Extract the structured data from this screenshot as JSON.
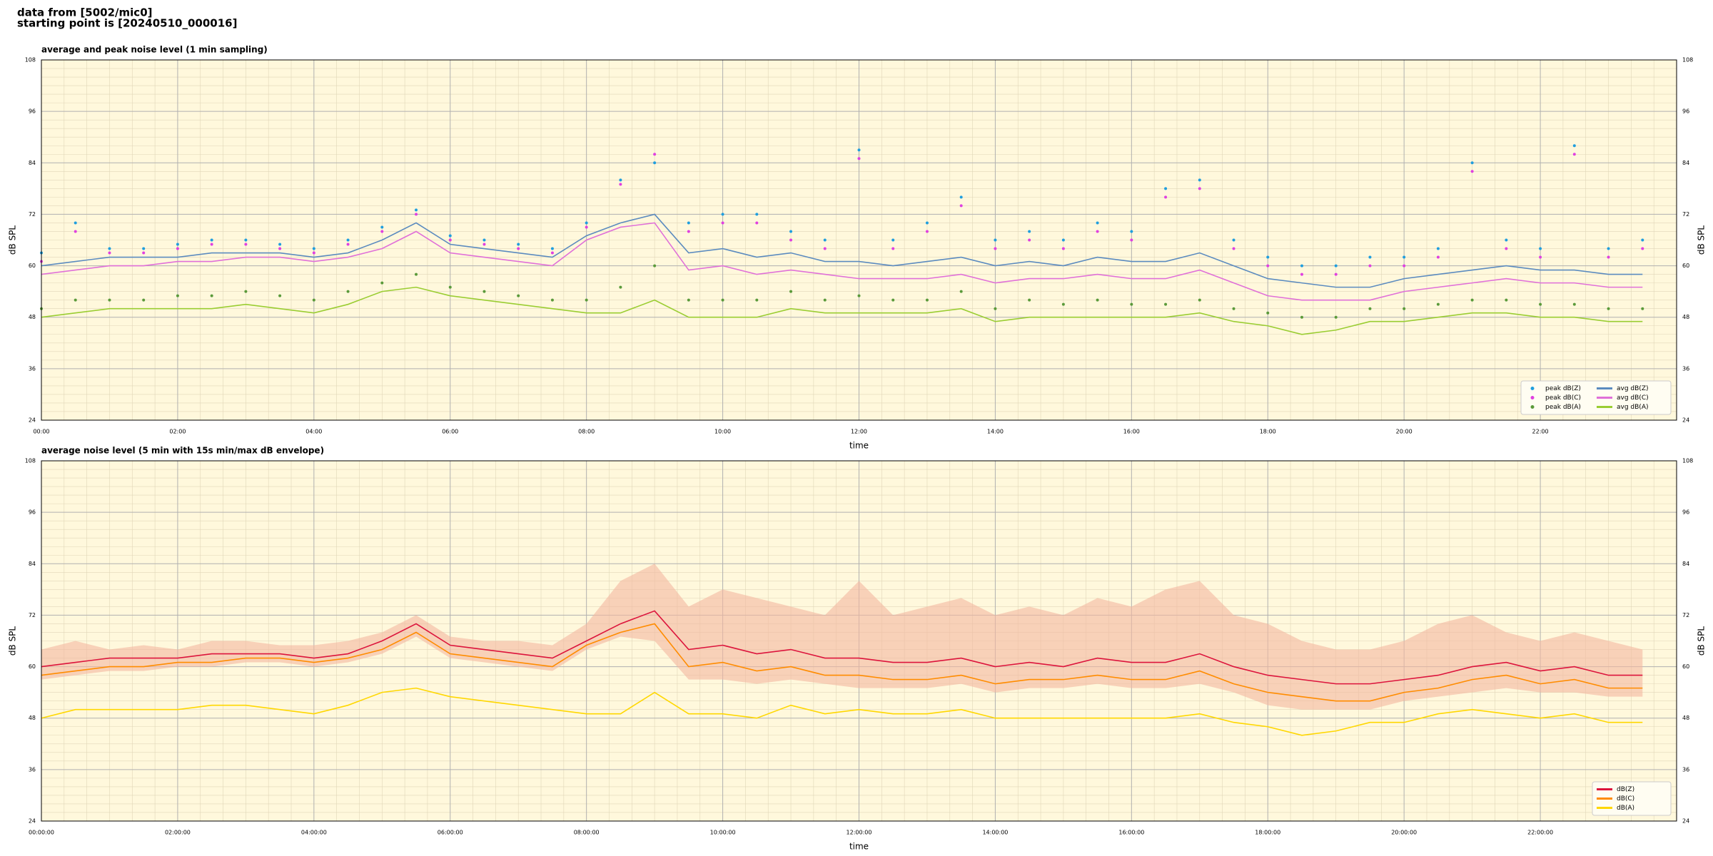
{
  "header": {
    "lines": [
      "data from [5002/mic0]",
      "starting point is [20240510_000016]"
    ]
  },
  "chart_data": [
    {
      "type": "line",
      "title": "average and peak noise level (1 min sampling)",
      "xlabel": "time",
      "ylabel": "dB SPL",
      "xlim": [
        0,
        24
      ],
      "ylim": [
        24,
        108
      ],
      "xticks": [
        {
          "value": 0,
          "label": "00:00"
        },
        {
          "value": 2,
          "label": "02:00"
        },
        {
          "value": 4,
          "label": "04:00"
        },
        {
          "value": 6,
          "label": "06:00"
        },
        {
          "value": 8,
          "label": "08:00"
        },
        {
          "value": 10,
          "label": "10:00"
        },
        {
          "value": 12,
          "label": "12:00"
        },
        {
          "value": 14,
          "label": "14:00"
        },
        {
          "value": 16,
          "label": "16:00"
        },
        {
          "value": 18,
          "label": "18:00"
        },
        {
          "value": 20,
          "label": "20:00"
        },
        {
          "value": 22,
          "label": "22:00"
        }
      ],
      "yticks": [
        24,
        36,
        48,
        60,
        72,
        84,
        96,
        108
      ],
      "grid": true,
      "minor_grid": true,
      "background": "#fff8dc",
      "legend": "lower right",
      "legend_columns": 2,
      "x": [
        0,
        0.5,
        1,
        1.5,
        2,
        2.5,
        3,
        3.5,
        4,
        4.5,
        5,
        5.5,
        6,
        6.5,
        7,
        7.5,
        8,
        8.5,
        9,
        9.5,
        10,
        10.5,
        11,
        11.5,
        12,
        12.5,
        13,
        13.5,
        14,
        14.5,
        15,
        15.5,
        16,
        16.5,
        17,
        17.5,
        18,
        18.5,
        19,
        19.5,
        20,
        20.5,
        21,
        21.5,
        22,
        22.5,
        23,
        23.5
      ],
      "series": [
        {
          "name": "peak dB(Z)",
          "style": "dots",
          "color": "#1f9ede",
          "values": [
            63,
            70,
            64,
            64,
            65,
            66,
            66,
            65,
            64,
            66,
            69,
            73,
            67,
            66,
            65,
            64,
            70,
            80,
            84,
            70,
            72,
            72,
            68,
            66,
            87,
            66,
            70,
            76,
            66,
            68,
            66,
            70,
            68,
            78,
            80,
            66,
            62,
            60,
            60,
            62,
            62,
            64,
            84,
            66,
            64,
            88,
            64,
            66
          ]
        },
        {
          "name": "peak dB(C)",
          "style": "dots",
          "color": "#e040e0",
          "values": [
            61,
            68,
            63,
            63,
            64,
            65,
            65,
            64,
            63,
            65,
            68,
            72,
            66,
            65,
            64,
            63,
            69,
            79,
            86,
            68,
            70,
            70,
            66,
            64,
            85,
            64,
            68,
            74,
            64,
            66,
            64,
            68,
            66,
            76,
            78,
            64,
            60,
            58,
            58,
            60,
            60,
            62,
            82,
            64,
            62,
            86,
            62,
            64
          ]
        },
        {
          "name": "peak dB(A)",
          "style": "dots",
          "color": "#5a9a3a",
          "values": [
            50,
            52,
            52,
            52,
            53,
            53,
            54,
            53,
            52,
            54,
            56,
            58,
            55,
            54,
            53,
            52,
            52,
            55,
            60,
            52,
            52,
            52,
            54,
            52,
            53,
            52,
            52,
            54,
            50,
            52,
            51,
            52,
            51,
            51,
            52,
            50,
            49,
            48,
            48,
            50,
            50,
            51,
            52,
            52,
            51,
            51,
            50,
            50
          ]
        },
        {
          "name": "avg dB(Z)",
          "style": "line",
          "color": "#5b8bbf",
          "values": [
            60,
            61,
            62,
            62,
            62,
            63,
            63,
            63,
            62,
            63,
            66,
            70,
            65,
            64,
            63,
            62,
            67,
            70,
            72,
            63,
            64,
            62,
            63,
            61,
            61,
            60,
            61,
            62,
            60,
            61,
            60,
            62,
            61,
            61,
            63,
            60,
            57,
            56,
            55,
            55,
            57,
            58,
            59,
            60,
            59,
            59,
            58,
            58
          ]
        },
        {
          "name": "avg dB(C)",
          "style": "line",
          "color": "#e070d8",
          "values": [
            58,
            59,
            60,
            60,
            61,
            61,
            62,
            62,
            61,
            62,
            64,
            68,
            63,
            62,
            61,
            60,
            66,
            69,
            70,
            59,
            60,
            58,
            59,
            58,
            57,
            57,
            57,
            58,
            56,
            57,
            57,
            58,
            57,
            57,
            59,
            56,
            53,
            52,
            52,
            52,
            54,
            55,
            56,
            57,
            56,
            56,
            55,
            55
          ]
        },
        {
          "name": "avg dB(A)",
          "style": "line",
          "color": "#9acd32",
          "values": [
            48,
            49,
            50,
            50,
            50,
            50,
            51,
            50,
            49,
            51,
            54,
            55,
            53,
            52,
            51,
            50,
            49,
            49,
            52,
            48,
            48,
            48,
            50,
            49,
            49,
            49,
            49,
            50,
            47,
            48,
            48,
            48,
            48,
            48,
            49,
            47,
            46,
            44,
            45,
            47,
            47,
            48,
            49,
            49,
            48,
            48,
            47,
            47
          ]
        }
      ]
    },
    {
      "type": "line",
      "title": "average noise level (5 min with 15s min/max dB envelope)",
      "xlabel": "time",
      "ylabel": "dB SPL",
      "xlim": [
        0,
        24
      ],
      "ylim": [
        24,
        108
      ],
      "xticks": [
        {
          "value": 0,
          "label": "00:00:00"
        },
        {
          "value": 2,
          "label": "02:00:00"
        },
        {
          "value": 4,
          "label": "04:00:00"
        },
        {
          "value": 6,
          "label": "06:00:00"
        },
        {
          "value": 8,
          "label": "08:00:00"
        },
        {
          "value": 10,
          "label": "10:00:00"
        },
        {
          "value": 12,
          "label": "12:00:00"
        },
        {
          "value": 14,
          "label": "14:00:00"
        },
        {
          "value": 16,
          "label": "16:00:00"
        },
        {
          "value": 18,
          "label": "18:00:00"
        },
        {
          "value": 20,
          "label": "20:00:00"
        },
        {
          "value": 22,
          "label": "22:00:00"
        }
      ],
      "yticks": [
        24,
        36,
        48,
        60,
        72,
        84,
        96,
        108
      ],
      "grid": true,
      "minor_grid": true,
      "background": "#fff8dc",
      "legend": "lower right",
      "legend_columns": 1,
      "x": [
        0,
        0.5,
        1,
        1.5,
        2,
        2.5,
        3,
        3.5,
        4,
        4.5,
        5,
        5.5,
        6,
        6.5,
        7,
        7.5,
        8,
        8.5,
        9,
        9.5,
        10,
        10.5,
        11,
        11.5,
        12,
        12.5,
        13,
        13.5,
        14,
        14.5,
        15,
        15.5,
        16,
        16.5,
        17,
        17.5,
        18,
        18.5,
        19,
        19.5,
        20,
        20.5,
        21,
        21.5,
        22,
        22.5,
        23,
        23.5
      ],
      "envelope": {
        "color": "#f4b8a0",
        "high": [
          64,
          66,
          64,
          65,
          64,
          66,
          66,
          65,
          65,
          66,
          68,
          72,
          67,
          66,
          66,
          65,
          70,
          80,
          84,
          74,
          78,
          76,
          74,
          72,
          80,
          72,
          74,
          76,
          72,
          74,
          72,
          76,
          74,
          78,
          80,
          72,
          70,
          66,
          64,
          64,
          66,
          70,
          72,
          68,
          66,
          68,
          66,
          64
        ],
        "low": [
          57,
          58,
          59,
          59,
          60,
          60,
          61,
          61,
          60,
          61,
          63,
          67,
          62,
          61,
          60,
          59,
          64,
          67,
          66,
          57,
          57,
          56,
          57,
          56,
          55,
          55,
          55,
          56,
          54,
          55,
          55,
          56,
          55,
          55,
          56,
          54,
          51,
          50,
          50,
          50,
          52,
          53,
          54,
          55,
          54,
          54,
          53,
          53
        ]
      },
      "series": [
        {
          "name": "dB(Z)",
          "style": "line",
          "color": "#dc143c",
          "values": [
            60,
            61,
            62,
            62,
            62,
            63,
            63,
            63,
            62,
            63,
            66,
            70,
            65,
            64,
            63,
            62,
            66,
            70,
            73,
            64,
            65,
            63,
            64,
            62,
            62,
            61,
            61,
            62,
            60,
            61,
            60,
            62,
            61,
            61,
            63,
            60,
            58,
            57,
            56,
            56,
            57,
            58,
            60,
            61,
            59,
            60,
            58,
            58
          ]
        },
        {
          "name": "dB(C)",
          "style": "line",
          "color": "#ff8c00",
          "values": [
            58,
            59,
            60,
            60,
            61,
            61,
            62,
            62,
            61,
            62,
            64,
            68,
            63,
            62,
            61,
            60,
            65,
            68,
            70,
            60,
            61,
            59,
            60,
            58,
            58,
            57,
            57,
            58,
            56,
            57,
            57,
            58,
            57,
            57,
            59,
            56,
            54,
            53,
            52,
            52,
            54,
            55,
            57,
            58,
            56,
            57,
            55,
            55
          ]
        },
        {
          "name": "dB(A)",
          "style": "line",
          "color": "#ffd700",
          "values": [
            48,
            50,
            50,
            50,
            50,
            51,
            51,
            50,
            49,
            51,
            54,
            55,
            53,
            52,
            51,
            50,
            49,
            49,
            54,
            49,
            49,
            48,
            51,
            49,
            50,
            49,
            49,
            50,
            48,
            48,
            48,
            48,
            48,
            48,
            49,
            47,
            46,
            44,
            45,
            47,
            47,
            49,
            50,
            49,
            48,
            49,
            47,
            47
          ]
        }
      ]
    }
  ]
}
